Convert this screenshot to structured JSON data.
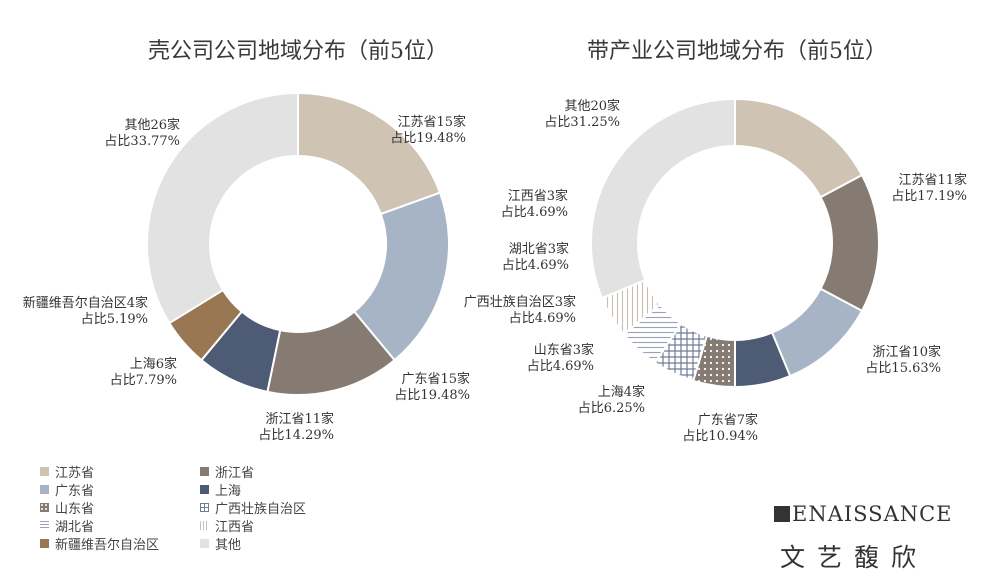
{
  "colors": {
    "jiangsu": "#cfc3b3",
    "zhejiang": "#857b72",
    "guangdong": "#a7b4c5",
    "shanghai": "#4d5b74",
    "shandong": "#857b72",
    "guangxi": "#9aa3b5",
    "hubei": "#b7bcc6",
    "jiangxi": "#d2cbc3",
    "xinjiang": "#9a7753",
    "other": "#e2e2e2"
  },
  "chart_data": [
    {
      "type": "pie",
      "donut": true,
      "title": "壳公司公司地域分布（前5位）",
      "slices": [
        {
          "key": "jiangsu",
          "name": "江苏省",
          "count_label": "江苏省15家",
          "share_label": "占比19.48%",
          "value": 19.48,
          "pattern": "solid"
        },
        {
          "key": "guangdong",
          "name": "广东省",
          "count_label": "广东省15家",
          "share_label": "占比19.48%",
          "value": 19.48,
          "pattern": "solid"
        },
        {
          "key": "zhejiang",
          "name": "浙江省",
          "count_label": "浙江省11家",
          "share_label": "占比14.29%",
          "value": 14.29,
          "pattern": "solid"
        },
        {
          "key": "shanghai",
          "name": "上海",
          "count_label": "上海6家",
          "share_label": "占比7.79%",
          "value": 7.79,
          "pattern": "solid"
        },
        {
          "key": "xinjiang",
          "name": "新疆维吾尔自治区",
          "count_label": "新疆维吾尔自治区4家",
          "share_label": "占比5.19%",
          "value": 5.19,
          "pattern": "solid"
        },
        {
          "key": "other",
          "name": "其他",
          "count_label": "其他26家",
          "share_label": "占比33.77%",
          "value": 33.77,
          "pattern": "solid"
        }
      ]
    },
    {
      "type": "pie",
      "donut": true,
      "title": "带产业公司地域分布（前5位）",
      "slices": [
        {
          "key": "jiangsu",
          "name": "江苏省",
          "count_label": "江苏省11家",
          "share_label": "占比17.19%",
          "value": 17.19,
          "pattern": "solid"
        },
        {
          "key": "zhejiang",
          "name": "浙江省",
          "count_label": "浙江省10家",
          "share_label": "占比15.63%",
          "value": 15.63,
          "pattern": "solid"
        },
        {
          "key": "guangdong",
          "name": "广东省",
          "count_label": "广东省7家",
          "share_label": "占比10.94%",
          "value": 10.94,
          "pattern": "solid"
        },
        {
          "key": "shanghai",
          "name": "上海",
          "count_label": "上海4家",
          "share_label": "占比6.25%",
          "value": 6.25,
          "pattern": "solid"
        },
        {
          "key": "shandong",
          "name": "山东省",
          "count_label": "山东省3家",
          "share_label": "占比4.69%",
          "value": 4.69,
          "pattern": "dots"
        },
        {
          "key": "guangxi",
          "name": "广西壮族自治区",
          "count_label": "广西壮族自治区3家",
          "share_label": "占比4.69%",
          "value": 4.69,
          "pattern": "grid"
        },
        {
          "key": "hubei",
          "name": "湖北省",
          "count_label": "湖北省3家",
          "share_label": "占比4.69%",
          "value": 4.69,
          "pattern": "hlines"
        },
        {
          "key": "jiangxi",
          "name": "江西省",
          "count_label": "江西省3家",
          "share_label": "占比4.69%",
          "value": 4.69,
          "pattern": "vlines"
        },
        {
          "key": "other",
          "name": "其他",
          "count_label": "其他20家",
          "share_label": "占比31.25%",
          "value": 31.25,
          "pattern": "solid"
        }
      ]
    }
  ],
  "legend": [
    {
      "key": "jiangsu",
      "label": "江苏省",
      "pattern": "solid"
    },
    {
      "key": "zhejiang",
      "label": "浙江省",
      "pattern": "solid"
    },
    {
      "key": "guangdong",
      "label": "广东省",
      "pattern": "solid"
    },
    {
      "key": "shanghai",
      "label": "上海",
      "pattern": "solid"
    },
    {
      "key": "shandong",
      "label": "山东省",
      "pattern": "dots"
    },
    {
      "key": "guangxi",
      "label": "广西壮族自治区",
      "pattern": "grid"
    },
    {
      "key": "hubei",
      "label": "湖北省",
      "pattern": "hlines"
    },
    {
      "key": "jiangxi",
      "label": "江西省",
      "pattern": "vlines"
    },
    {
      "key": "xinjiang",
      "label": "新疆维吾尔自治区",
      "pattern": "solid"
    },
    {
      "key": "other",
      "label": "其他",
      "pattern": "solid"
    }
  ],
  "brand": {
    "english": "ENAISSANCE",
    "chinese": "文艺馥欣"
  }
}
